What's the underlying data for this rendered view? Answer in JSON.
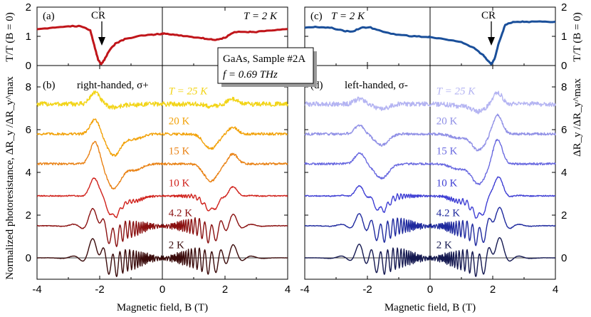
{
  "figure": {
    "x_axis_label": "Magnetic field, B (T)",
    "y_axis_left_top": "T/T (B = 0)",
    "y_axis_left_bottom": "Normalized photoresistance, ΔR_y /ΔR_y^max",
    "y_axis_right_top": "T/T (B = 0)",
    "y_axis_right_bottom": "ΔR_y /ΔR_y^max",
    "infobox_line1": "GaAs, Sample #2A",
    "infobox_line2": "f = 0.69 THz"
  },
  "panels": {
    "a": {
      "letter": "(a)",
      "cr_label": "CR",
      "temp_label": "T = 2 K",
      "color": "#c0151a"
    },
    "b": {
      "letter": "(b)",
      "title": "right-handed, σ+"
    },
    "c": {
      "letter": "(c)",
      "cr_label": "CR",
      "temp_label": "T = 2 K",
      "color": "#1a4f9a"
    },
    "d": {
      "letter": "(d)",
      "title": "left-handed, σ-"
    }
  },
  "chart_data": [
    {
      "type": "line",
      "panel": "a",
      "title": "T = 2 K",
      "xlabel": "Magnetic field, B (T)",
      "ylabel": "T/T (B = 0)",
      "xlim": [
        -4,
        4
      ],
      "ylim": [
        0,
        2
      ],
      "x_ticks": [
        -4,
        -2,
        0,
        2,
        4
      ],
      "y_ticks": [
        0,
        1,
        2
      ],
      "annotations": [
        {
          "text": "CR",
          "x": -2.0
        }
      ],
      "series": [
        {
          "name": "T = 2 K",
          "color": "#c0151a",
          "x": [
            -4.0,
            -3.5,
            -3.0,
            -2.6,
            -2.3,
            -2.15,
            -2.05,
            -1.95,
            -1.85,
            -1.7,
            -1.5,
            -1.2,
            -0.8,
            -0.4,
            -0.05,
            0.05,
            0.4,
            0.8,
            1.2,
            1.5,
            1.7,
            2.0,
            2.3,
            2.7,
            3.0,
            3.5,
            4.0
          ],
          "y": [
            1.25,
            1.3,
            1.35,
            1.35,
            1.2,
            0.6,
            0.2,
            0.05,
            0.2,
            0.5,
            0.75,
            0.9,
            1.0,
            1.05,
            1.08,
            1.1,
            1.05,
            1.0,
            0.95,
            0.9,
            0.88,
            0.95,
            1.15,
            1.15,
            1.15,
            1.2,
            1.25
          ]
        }
      ]
    },
    {
      "type": "line",
      "panel": "b",
      "title": "right-handed, σ+",
      "xlabel": "Magnetic field, B (T)",
      "ylabel": "Normalized photoresistance, ΔR_y /ΔR_y^max",
      "xlim": [
        -4,
        4
      ],
      "ylim": [
        -1,
        9
      ],
      "x_ticks": [
        -4,
        -2,
        0,
        2,
        4
      ],
      "y_ticks": [
        0,
        2,
        4,
        6,
        8
      ],
      "series": [
        {
          "name": "T = 25 K",
          "color": "#f2d417",
          "offset": 7.2,
          "dip": 0.15,
          "peak": 0.55,
          "noise": 0.22,
          "osc": 0
        },
        {
          "name": "20 K",
          "color": "#f2a20a",
          "offset": 5.8,
          "dip": 1.0,
          "peak": 0.7,
          "noise": 0.12,
          "osc": 0
        },
        {
          "name": "15 K",
          "color": "#e98215",
          "offset": 4.4,
          "dip": 1.15,
          "peak": 1.05,
          "noise": 0.1,
          "osc": 0
        },
        {
          "name": "10 K",
          "color": "#d0201a",
          "offset": 2.9,
          "dip": 0.95,
          "peak": 0.85,
          "noise": 0.05,
          "osc": 0.1
        },
        {
          "name": "4.2 K",
          "color": "#8a1010",
          "offset": 1.5,
          "dip": 0.55,
          "peak": 0.7,
          "noise": 0.03,
          "osc": 0.45
        },
        {
          "name": "2 K",
          "color": "#3a0a0a",
          "offset": 0.0,
          "dip": 0.35,
          "peak": 0.75,
          "noise": 0.01,
          "osc": 0.55
        }
      ]
    },
    {
      "type": "line",
      "panel": "c",
      "title": "T = 2 K",
      "xlabel": "Magnetic field, B (T)",
      "ylabel": "T/T (B = 0)",
      "xlim": [
        -4,
        4
      ],
      "ylim": [
        0,
        2
      ],
      "x_ticks": [
        -4,
        -2,
        0,
        2,
        4
      ],
      "y_ticks": [
        0,
        1,
        2
      ],
      "annotations": [
        {
          "text": "CR",
          "x": 1.95
        }
      ],
      "series": [
        {
          "name": "T = 2 K",
          "color": "#1a4f9a",
          "x": [
            -4.0,
            -3.6,
            -3.2,
            -2.8,
            -2.5,
            -2.2,
            -1.9,
            -1.5,
            -1.0,
            -0.5,
            -0.05,
            0.05,
            0.5,
            1.0,
            1.4,
            1.7,
            1.85,
            1.95,
            2.05,
            2.2,
            2.4,
            2.7,
            3.0,
            3.5,
            4.0
          ],
          "y": [
            1.3,
            1.32,
            1.3,
            1.2,
            1.15,
            1.3,
            1.3,
            1.15,
            1.05,
            1.0,
            0.98,
            0.97,
            0.9,
            0.8,
            0.6,
            0.35,
            0.15,
            0.05,
            0.2,
            0.8,
            1.4,
            1.5,
            1.5,
            1.5,
            1.5
          ]
        }
      ]
    },
    {
      "type": "line",
      "panel": "d",
      "title": "left-handed, σ-",
      "xlabel": "Magnetic field, B (T)",
      "ylabel": "ΔR_y /ΔR_y^max",
      "xlim": [
        -4,
        4
      ],
      "ylim": [
        -1,
        9
      ],
      "x_ticks": [
        -4,
        -2,
        0,
        2,
        4
      ],
      "y_ticks": [
        0,
        2,
        4,
        6,
        8
      ],
      "series": [
        {
          "name": "T = 25 K",
          "color": "#b4b4f2",
          "offset": 7.2,
          "dip": 0.35,
          "peak": 0.55,
          "noise": 0.22,
          "osc": 0
        },
        {
          "name": "20 K",
          "color": "#9090e6",
          "offset": 5.8,
          "dip": 0.75,
          "peak": 0.9,
          "noise": 0.12,
          "osc": 0
        },
        {
          "name": "15 K",
          "color": "#6a6ae0",
          "offset": 4.4,
          "dip": 0.95,
          "peak": 1.15,
          "noise": 0.1,
          "osc": 0
        },
        {
          "name": "10 K",
          "color": "#3f3fd4",
          "offset": 2.9,
          "dip": 0.95,
          "peak": 0.9,
          "noise": 0.05,
          "osc": 0.15
        },
        {
          "name": "4.2 K",
          "color": "#1f2a9e",
          "offset": 1.5,
          "dip": 0.5,
          "peak": 0.75,
          "noise": 0.03,
          "osc": 0.45
        },
        {
          "name": "2 K",
          "color": "#141850",
          "offset": 0.0,
          "dip": 0.35,
          "peak": 0.8,
          "noise": 0.01,
          "osc": 0.55
        }
      ]
    }
  ]
}
